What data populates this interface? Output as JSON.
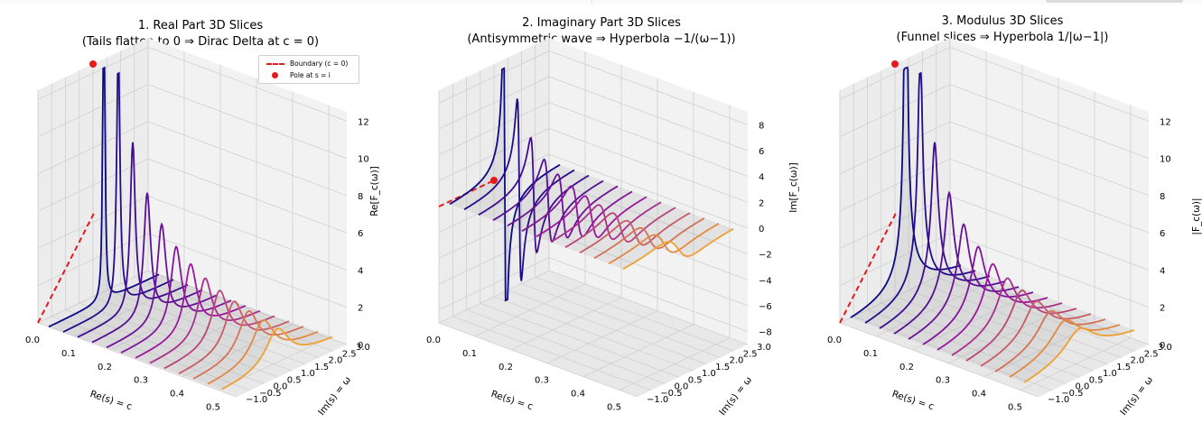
{
  "chart_data": [
    {
      "type": "3d-line",
      "title_line1": "1. Real Part 3D Slices",
      "title_line2": "(Tails flatten to 0 ⇒ Dirac Delta at c = 0)",
      "xlabel": "Re(s) = c",
      "ylabel": "Im(s) = ω",
      "zlabel": "Re[F_c(ω)]",
      "x_ticks": [
        "0.0",
        "0.1",
        "0.2",
        "0.3",
        "0.4",
        "0.5"
      ],
      "y_ticks": [
        "−1.0",
        "−0.5",
        "0.0",
        "0.5",
        "1.0",
        "1.5",
        "2.0",
        "2.5",
        "3.0"
      ],
      "z_ticks": [
        "0",
        "2",
        "4",
        "6",
        "8",
        "10",
        "12"
      ],
      "xlim": [
        0,
        0.55
      ],
      "ylim": [
        -1,
        3
      ],
      "zlim": [
        0,
        12.5
      ],
      "legend": [
        {
          "label": "Boundary (c = 0)",
          "style": "dashed-line",
          "color": "#e41a1c"
        },
        {
          "label": "Pole at s = i",
          "style": "dot",
          "color": "#e41a1c"
        }
      ],
      "pole": {
        "c": 0,
        "omega": 1,
        "z": 12.5
      },
      "component": "real",
      "c_values": [
        0.03,
        0.07,
        0.11,
        0.15,
        0.19,
        0.23,
        0.27,
        0.31,
        0.35,
        0.39,
        0.43,
        0.47,
        0.51
      ]
    },
    {
      "type": "3d-line",
      "title_line1": "2. Imaginary Part 3D Slices",
      "title_line2": "(Antisymmetric wave ⇒ Hyperbola −1/(ω−1))",
      "xlabel": "Re(s) = c",
      "ylabel": "Im(s) = ω",
      "zlabel": "Im[F_c(ω)]",
      "x_ticks": [
        "0.0",
        "0.1",
        "0.2",
        "0.3",
        "0.4",
        "0.5"
      ],
      "y_ticks": [
        "−1.0",
        "−0.5",
        "0.0",
        "0.5",
        "1.0",
        "1.5",
        "2.0",
        "2.5",
        "3.0"
      ],
      "z_ticks": [
        "−8",
        "−6",
        "−4",
        "−2",
        "0",
        "2",
        "4",
        "6",
        "8"
      ],
      "xlim": [
        0,
        0.55
      ],
      "ylim": [
        -1,
        3
      ],
      "zlim": [
        -9,
        9
      ],
      "pole": {
        "c": 0,
        "omega": 1,
        "z": 0
      },
      "component": "imag",
      "c_values": [
        0.03,
        0.07,
        0.11,
        0.15,
        0.19,
        0.23,
        0.27,
        0.31,
        0.35,
        0.39,
        0.43,
        0.47,
        0.51
      ]
    },
    {
      "type": "3d-line",
      "title_line1": "3. Modulus 3D Slices",
      "title_line2": "(Funnel slices ⇒ Hyperbola 1/|ω−1|)",
      "xlabel": "Re(s) = c",
      "ylabel": "Im(s) = ω",
      "zlabel": "|F_c(ω)|",
      "x_ticks": [
        "0.0",
        "0.1",
        "0.2",
        "0.3",
        "0.4",
        "0.5"
      ],
      "y_ticks": [
        "−1.0",
        "−0.5",
        "0.0",
        "0.5",
        "1.0",
        "1.5",
        "2.0",
        "2.5",
        "3.0"
      ],
      "z_ticks": [
        "0",
        "2",
        "4",
        "6",
        "8",
        "10",
        "12"
      ],
      "xlim": [
        0,
        0.55
      ],
      "ylim": [
        -1,
        3
      ],
      "zlim": [
        0,
        12.5
      ],
      "pole": {
        "c": 0,
        "omega": 1,
        "z": 12.5
      },
      "component": "abs",
      "c_values": [
        0.03,
        0.07,
        0.11,
        0.15,
        0.19,
        0.23,
        0.27,
        0.31,
        0.35,
        0.39,
        0.43,
        0.47,
        0.51
      ]
    }
  ],
  "colors": {
    "slice_start": "#0d0887",
    "slice_mid": "#9c179e",
    "slice_end": "#f0a030",
    "boundary": "#e41a1c",
    "pane": "#f2f2f2",
    "grid": "#d0d0d0"
  }
}
